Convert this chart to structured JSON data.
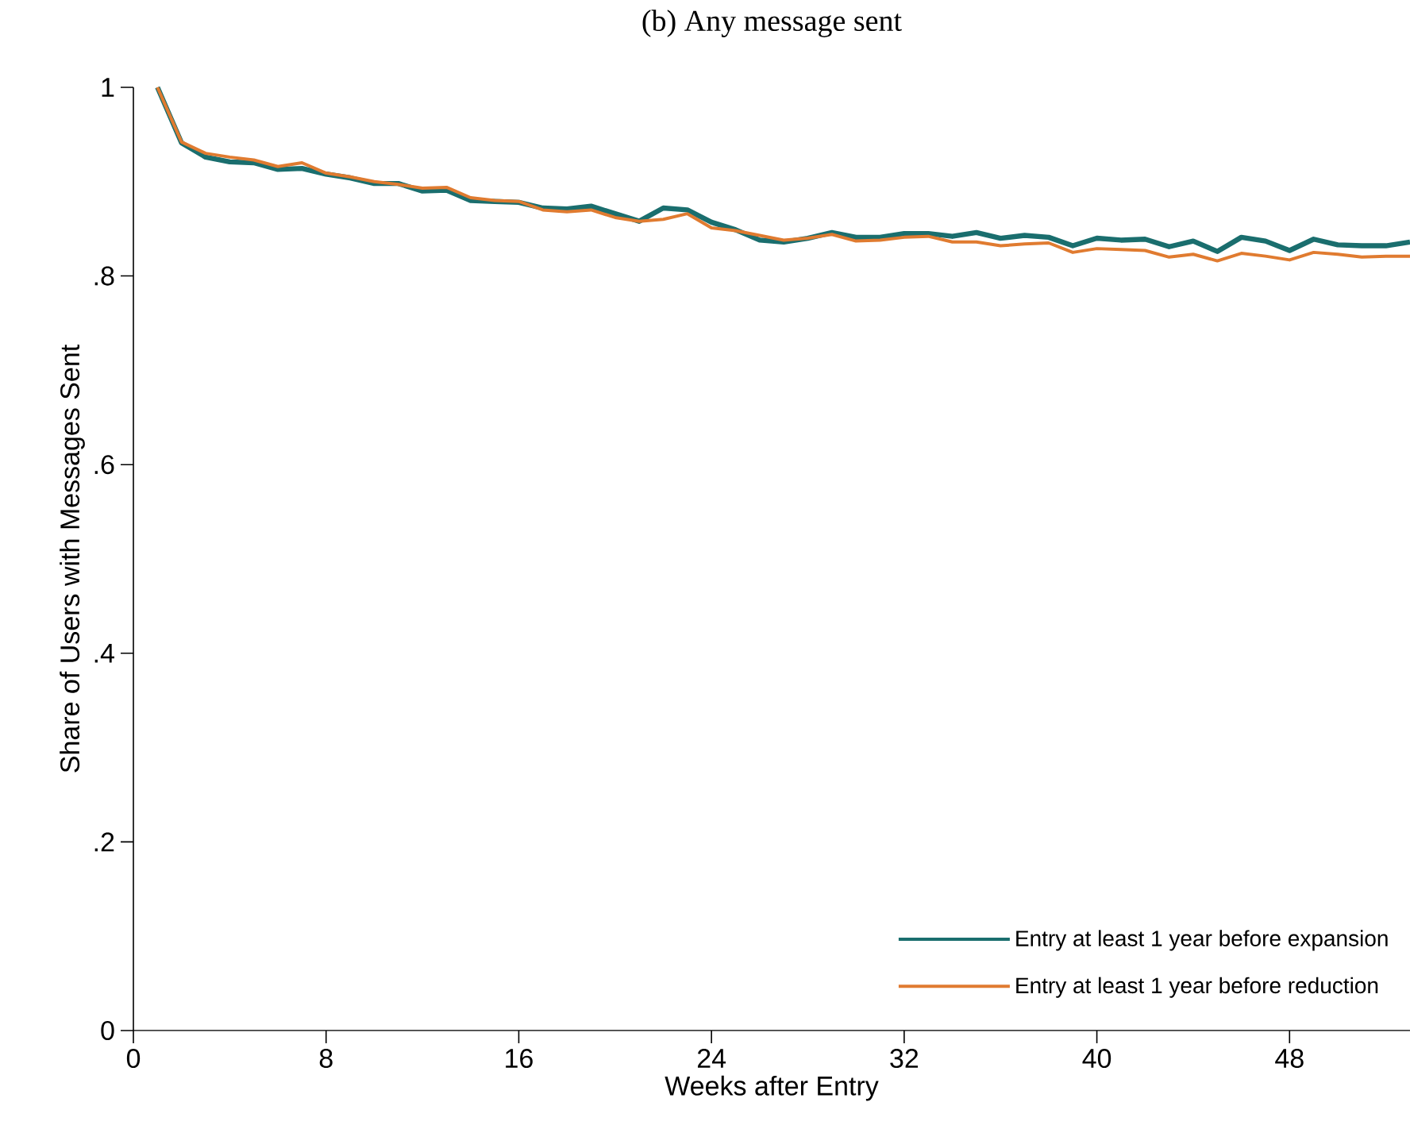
{
  "chart_data": {
    "type": "line",
    "title": "(b) Any message sent",
    "xlabel": "Weeks after Entry",
    "ylabel": "Share of Users with Messages Sent",
    "x": [
      1,
      2,
      3,
      4,
      5,
      6,
      7,
      8,
      9,
      10,
      11,
      12,
      13,
      14,
      15,
      16,
      17,
      18,
      19,
      20,
      21,
      22,
      23,
      24,
      25,
      26,
      27,
      28,
      29,
      30,
      31,
      32,
      33,
      34,
      35,
      36,
      37,
      38,
      39,
      40,
      41,
      42,
      43,
      44,
      45,
      46,
      47,
      48,
      49,
      50,
      51,
      52,
      53
    ],
    "series": [
      {
        "name": "Entry at least 1 year before expansion",
        "color": "#1a6e6e",
        "values": [
          1.0,
          0.941,
          0.926,
          0.921,
          0.92,
          0.913,
          0.914,
          0.908,
          0.904,
          0.898,
          0.898,
          0.89,
          0.891,
          0.88,
          0.879,
          0.878,
          0.872,
          0.871,
          0.874,
          0.866,
          0.858,
          0.872,
          0.87,
          0.857,
          0.849,
          0.838,
          0.836,
          0.84,
          0.846,
          0.841,
          0.841,
          0.845,
          0.845,
          0.842,
          0.846,
          0.84,
          0.843,
          0.841,
          0.832,
          0.84,
          0.838,
          0.839,
          0.831,
          0.837,
          0.826,
          0.841,
          0.837,
          0.827,
          0.839,
          0.833,
          0.832,
          0.832,
          0.836
        ]
      },
      {
        "name": "Entry at least 1 year before reduction",
        "color": "#e07b30",
        "values": [
          1.0,
          0.942,
          0.93,
          0.926,
          0.923,
          0.916,
          0.92,
          0.909,
          0.905,
          0.9,
          0.897,
          0.893,
          0.894,
          0.883,
          0.88,
          0.879,
          0.87,
          0.868,
          0.87,
          0.862,
          0.858,
          0.86,
          0.866,
          0.851,
          0.848,
          0.843,
          0.838,
          0.84,
          0.844,
          0.837,
          0.838,
          0.841,
          0.842,
          0.836,
          0.836,
          0.832,
          0.834,
          0.835,
          0.825,
          0.829,
          0.828,
          0.827,
          0.82,
          0.823,
          0.816,
          0.824,
          0.821,
          0.817,
          0.825,
          0.823,
          0.82,
          0.821,
          0.821
        ]
      }
    ],
    "xlim": [
      0,
      53
    ],
    "ylim": [
      0,
      1
    ],
    "xticks": [
      0,
      8,
      16,
      24,
      32,
      40,
      48
    ],
    "yticks": [
      0,
      {
        "value": 0.2,
        "label": ".2"
      },
      {
        "value": 0.4,
        "label": ".4"
      },
      {
        "value": 0.6,
        "label": ".6"
      },
      {
        "value": 0.8,
        "label": ".8"
      },
      1
    ],
    "grid": false,
    "legend": "bottom right",
    "marker": "none",
    "line_style": "solid"
  }
}
